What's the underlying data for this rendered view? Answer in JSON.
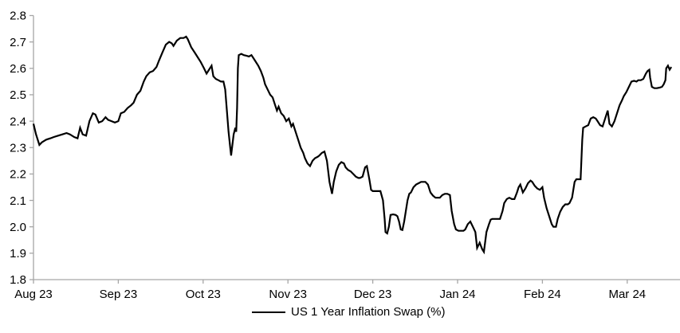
{
  "colors": {
    "background": "#ffffff",
    "axis": "#a6a6a6",
    "tick": "#a6a6a6",
    "text": "#000000",
    "series_line": "#000000"
  },
  "chart_data": {
    "type": "line",
    "title": "",
    "grid": false,
    "legend_position": "bottom-center",
    "y_axis": {
      "min": 1.8,
      "max": 2.8,
      "step": 0.1,
      "tick_labels": [
        "1.8",
        "1.9",
        "2.0",
        "2.1",
        "2.2",
        "2.3",
        "2.4",
        "2.5",
        "2.6",
        "2.7",
        "2.8"
      ]
    },
    "x_axis": {
      "tick_values": [
        0,
        1,
        2,
        3,
        4,
        5,
        6,
        7
      ],
      "tick_labels": [
        "Aug 23",
        "Sep 23",
        "Oct 23",
        "Nov 23",
        "Dec 23",
        "Jan 24",
        "Feb 24",
        "Mar 24"
      ]
    },
    "series": [
      {
        "name": "US 1 Year Inflation Swap (%)",
        "color": "#000000",
        "points": [
          [
            0.0,
            2.39
          ],
          [
            0.03,
            2.35
          ],
          [
            0.07,
            2.31
          ],
          [
            0.1,
            2.32
          ],
          [
            0.15,
            2.33
          ],
          [
            0.2,
            2.335
          ],
          [
            0.24,
            2.34
          ],
          [
            0.29,
            2.345
          ],
          [
            0.34,
            2.35
          ],
          [
            0.39,
            2.355
          ],
          [
            0.43,
            2.35
          ],
          [
            0.48,
            2.34
          ],
          [
            0.52,
            2.335
          ],
          [
            0.55,
            2.375
          ],
          [
            0.58,
            2.35
          ],
          [
            0.62,
            2.345
          ],
          [
            0.66,
            2.4
          ],
          [
            0.7,
            2.43
          ],
          [
            0.73,
            2.425
          ],
          [
            0.77,
            2.395
          ],
          [
            0.81,
            2.4
          ],
          [
            0.85,
            2.415
          ],
          [
            0.88,
            2.405
          ],
          [
            0.92,
            2.4
          ],
          [
            0.96,
            2.395
          ],
          [
            1.0,
            2.4
          ],
          [
            1.03,
            2.43
          ],
          [
            1.07,
            2.435
          ],
          [
            1.11,
            2.45
          ],
          [
            1.15,
            2.46
          ],
          [
            1.18,
            2.47
          ],
          [
            1.22,
            2.5
          ],
          [
            1.26,
            2.515
          ],
          [
            1.3,
            2.55
          ],
          [
            1.33,
            2.57
          ],
          [
            1.37,
            2.585
          ],
          [
            1.41,
            2.59
          ],
          [
            1.45,
            2.605
          ],
          [
            1.48,
            2.63
          ],
          [
            1.52,
            2.66
          ],
          [
            1.56,
            2.69
          ],
          [
            1.6,
            2.7
          ],
          [
            1.63,
            2.695
          ],
          [
            1.65,
            2.685
          ],
          [
            1.69,
            2.705
          ],
          [
            1.73,
            2.715
          ],
          [
            1.77,
            2.715
          ],
          [
            1.8,
            2.72
          ],
          [
            1.82,
            2.71
          ],
          [
            1.86,
            2.68
          ],
          [
            1.9,
            2.66
          ],
          [
            1.94,
            2.64
          ],
          [
            1.97,
            2.625
          ],
          [
            2.01,
            2.6
          ],
          [
            2.04,
            2.58
          ],
          [
            2.07,
            2.595
          ],
          [
            2.1,
            2.61
          ],
          [
            2.12,
            2.57
          ],
          [
            2.15,
            2.56
          ],
          [
            2.18,
            2.555
          ],
          [
            2.21,
            2.55
          ],
          [
            2.24,
            2.55
          ],
          [
            2.26,
            2.52
          ],
          [
            2.28,
            2.44
          ],
          [
            2.3,
            2.36
          ],
          [
            2.32,
            2.3
          ],
          [
            2.33,
            2.27
          ],
          [
            2.36,
            2.35
          ],
          [
            2.38,
            2.375
          ],
          [
            2.39,
            2.36
          ],
          [
            2.4,
            2.45
          ],
          [
            2.41,
            2.6
          ],
          [
            2.42,
            2.65
          ],
          [
            2.45,
            2.655
          ],
          [
            2.48,
            2.65
          ],
          [
            2.51,
            2.648
          ],
          [
            2.54,
            2.645
          ],
          [
            2.57,
            2.65
          ],
          [
            2.59,
            2.64
          ],
          [
            2.62,
            2.625
          ],
          [
            2.65,
            2.61
          ],
          [
            2.68,
            2.59
          ],
          [
            2.71,
            2.565
          ],
          [
            2.73,
            2.54
          ],
          [
            2.76,
            2.52
          ],
          [
            2.79,
            2.5
          ],
          [
            2.82,
            2.49
          ],
          [
            2.85,
            2.46
          ],
          [
            2.87,
            2.44
          ],
          [
            2.89,
            2.455
          ],
          [
            2.92,
            2.43
          ],
          [
            2.95,
            2.42
          ],
          [
            2.98,
            2.4
          ],
          [
            3.01,
            2.41
          ],
          [
            3.04,
            2.38
          ],
          [
            3.06,
            2.39
          ],
          [
            3.09,
            2.36
          ],
          [
            3.12,
            2.33
          ],
          [
            3.15,
            2.3
          ],
          [
            3.18,
            2.28
          ],
          [
            3.2,
            2.26
          ],
          [
            3.23,
            2.24
          ],
          [
            3.26,
            2.23
          ],
          [
            3.29,
            2.25
          ],
          [
            3.32,
            2.26
          ],
          [
            3.35,
            2.265
          ],
          [
            3.37,
            2.27
          ],
          [
            3.4,
            2.28
          ],
          [
            3.43,
            2.285
          ],
          [
            3.46,
            2.25
          ],
          [
            3.49,
            2.17
          ],
          [
            3.52,
            2.125
          ],
          [
            3.54,
            2.17
          ],
          [
            3.57,
            2.21
          ],
          [
            3.6,
            2.235
          ],
          [
            3.63,
            2.245
          ],
          [
            3.66,
            2.24
          ],
          [
            3.68,
            2.225
          ],
          [
            3.71,
            2.215
          ],
          [
            3.74,
            2.21
          ],
          [
            3.77,
            2.2
          ],
          [
            3.8,
            2.19
          ],
          [
            3.83,
            2.185
          ],
          [
            3.85,
            2.185
          ],
          [
            3.88,
            2.19
          ],
          [
            3.91,
            2.225
          ],
          [
            3.93,
            2.23
          ],
          [
            3.96,
            2.18
          ],
          [
            3.98,
            2.14
          ],
          [
            4.0,
            2.135
          ],
          [
            4.03,
            2.135
          ],
          [
            4.06,
            2.135
          ],
          [
            4.09,
            2.135
          ],
          [
            4.12,
            2.1
          ],
          [
            4.14,
            2.03
          ],
          [
            4.15,
            1.98
          ],
          [
            4.17,
            1.975
          ],
          [
            4.19,
            2.0
          ],
          [
            4.21,
            2.045
          ],
          [
            4.24,
            2.047
          ],
          [
            4.27,
            2.045
          ],
          [
            4.29,
            2.04
          ],
          [
            4.31,
            2.02
          ],
          [
            4.33,
            1.99
          ],
          [
            4.35,
            1.988
          ],
          [
            4.37,
            2.02
          ],
          [
            4.39,
            2.06
          ],
          [
            4.41,
            2.1
          ],
          [
            4.43,
            2.125
          ],
          [
            4.45,
            2.13
          ],
          [
            4.48,
            2.15
          ],
          [
            4.51,
            2.16
          ],
          [
            4.54,
            2.165
          ],
          [
            4.57,
            2.17
          ],
          [
            4.6,
            2.17
          ],
          [
            4.62,
            2.17
          ],
          [
            4.65,
            2.16
          ],
          [
            4.68,
            2.13
          ],
          [
            4.71,
            2.118
          ],
          [
            4.74,
            2.11
          ],
          [
            4.76,
            2.11
          ],
          [
            4.79,
            2.11
          ],
          [
            4.82,
            2.12
          ],
          [
            4.85,
            2.125
          ],
          [
            4.88,
            2.125
          ],
          [
            4.91,
            2.12
          ],
          [
            4.93,
            2.06
          ],
          [
            4.96,
            2.01
          ],
          [
            4.98,
            1.99
          ],
          [
            5.01,
            1.985
          ],
          [
            5.04,
            1.985
          ],
          [
            5.07,
            1.985
          ],
          [
            5.09,
            1.99
          ],
          [
            5.12,
            2.01
          ],
          [
            5.15,
            2.02
          ],
          [
            5.18,
            2.0
          ],
          [
            5.21,
            1.98
          ],
          [
            5.23,
            1.92
          ],
          [
            5.26,
            1.94
          ],
          [
            5.29,
            1.915
          ],
          [
            5.31,
            1.905
          ],
          [
            5.34,
            1.98
          ],
          [
            5.37,
            2.01
          ],
          [
            5.39,
            2.027
          ],
          [
            5.41,
            2.03
          ],
          [
            5.44,
            2.03
          ],
          [
            5.47,
            2.03
          ],
          [
            5.5,
            2.03
          ],
          [
            5.53,
            2.06
          ],
          [
            5.55,
            2.09
          ],
          [
            5.58,
            2.105
          ],
          [
            5.61,
            2.11
          ],
          [
            5.64,
            2.105
          ],
          [
            5.67,
            2.105
          ],
          [
            5.7,
            2.13
          ],
          [
            5.72,
            2.15
          ],
          [
            5.74,
            2.16
          ],
          [
            5.77,
            2.13
          ],
          [
            5.8,
            2.145
          ],
          [
            5.83,
            2.165
          ],
          [
            5.86,
            2.175
          ],
          [
            5.88,
            2.17
          ],
          [
            5.91,
            2.155
          ],
          [
            5.94,
            2.145
          ],
          [
            5.97,
            2.14
          ],
          [
            6.0,
            2.15
          ],
          [
            6.02,
            2.11
          ],
          [
            6.05,
            2.07
          ],
          [
            6.08,
            2.04
          ],
          [
            6.11,
            2.01
          ],
          [
            6.13,
            2.0
          ],
          [
            6.16,
            2.0
          ],
          [
            6.18,
            2.03
          ],
          [
            6.21,
            2.057
          ],
          [
            6.24,
            2.075
          ],
          [
            6.27,
            2.085
          ],
          [
            6.3,
            2.085
          ],
          [
            6.32,
            2.09
          ],
          [
            6.35,
            2.11
          ],
          [
            6.38,
            2.17
          ],
          [
            6.4,
            2.18
          ],
          [
            6.43,
            2.18
          ],
          [
            6.45,
            2.18
          ],
          [
            6.47,
            2.33
          ],
          [
            6.48,
            2.375
          ],
          [
            6.51,
            2.38
          ],
          [
            6.54,
            2.385
          ],
          [
            6.57,
            2.41
          ],
          [
            6.6,
            2.415
          ],
          [
            6.63,
            2.41
          ],
          [
            6.65,
            2.4
          ],
          [
            6.68,
            2.385
          ],
          [
            6.71,
            2.38
          ],
          [
            6.74,
            2.41
          ],
          [
            6.77,
            2.44
          ],
          [
            6.79,
            2.39
          ],
          [
            6.82,
            2.38
          ],
          [
            6.85,
            2.4
          ],
          [
            6.88,
            2.43
          ],
          [
            6.91,
            2.46
          ],
          [
            6.94,
            2.48
          ],
          [
            6.96,
            2.495
          ],
          [
            6.99,
            2.51
          ],
          [
            7.02,
            2.53
          ],
          [
            7.05,
            2.55
          ],
          [
            7.08,
            2.553
          ],
          [
            7.11,
            2.55
          ],
          [
            7.13,
            2.555
          ],
          [
            7.16,
            2.555
          ],
          [
            7.19,
            2.56
          ],
          [
            7.22,
            2.58
          ],
          [
            7.24,
            2.59
          ],
          [
            7.26,
            2.595
          ],
          [
            7.27,
            2.565
          ],
          [
            7.29,
            2.53
          ],
          [
            7.32,
            2.525
          ],
          [
            7.35,
            2.525
          ],
          [
            7.38,
            2.527
          ],
          [
            7.41,
            2.53
          ],
          [
            7.43,
            2.54
          ],
          [
            7.45,
            2.555
          ],
          [
            7.46,
            2.6
          ],
          [
            7.48,
            2.61
          ],
          [
            7.5,
            2.595
          ],
          [
            7.52,
            2.605
          ]
        ]
      }
    ]
  }
}
